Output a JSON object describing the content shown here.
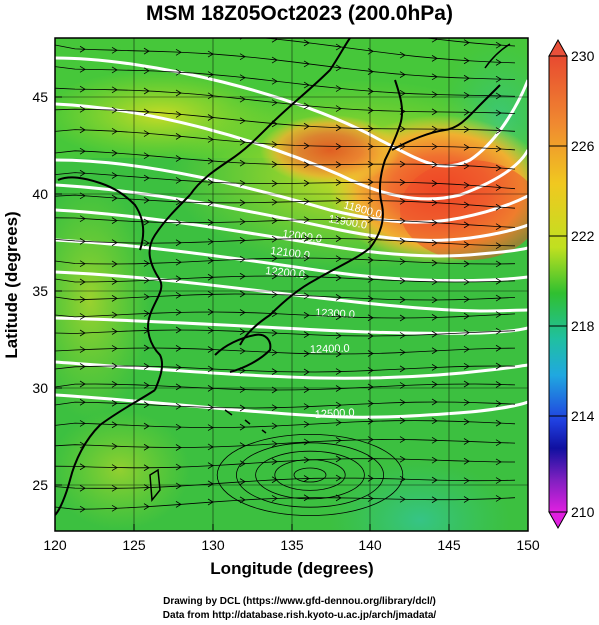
{
  "title": "MSM 18Z05Oct2023 (200.0hPa)",
  "colorbar": {
    "labels": [
      "230",
      "226",
      "222",
      "218",
      "214",
      "210"
    ],
    "colors": [
      "#e8503a",
      "#f0a020",
      "#d8e020",
      "#30c020",
      "#20c0c0",
      "#3060f0",
      "#1010b0",
      "#e020e0"
    ]
  },
  "axes": {
    "xlabel": "Longitude (degrees)",
    "ylabel": "Latitude  (degrees)",
    "xticks": [
      "120",
      "125",
      "130",
      "135",
      "140",
      "145",
      "150"
    ],
    "yticks": [
      "45",
      "40",
      "35",
      "30",
      "25"
    ],
    "xlim": [
      120,
      150
    ],
    "ylim": [
      22.5,
      48
    ]
  },
  "contours": [
    {
      "label": "11800.0",
      "lat_at_label": 40.0
    },
    {
      "label": "11900.0",
      "lat_at_label": 39.2
    },
    {
      "label": "12000.0",
      "lat_at_label": 38.4
    },
    {
      "label": "12100.0",
      "lat_at_label": 37.5
    },
    {
      "label": "12200.0",
      "lat_at_label": 36.7
    },
    {
      "label": "12300.0",
      "lat_at_label": 34.5
    },
    {
      "label": "12400.0",
      "lat_at_label": 32.2
    },
    {
      "label": "12500.0",
      "lat_at_label": 28.0
    }
  ],
  "credits": {
    "line1": "Drawing by DCL (https://www.gfd-dennou.org/library/dcl/)",
    "line2": "Data from http://database.rish.kyoto-u.ac.jp/arch/jmadata/"
  }
}
